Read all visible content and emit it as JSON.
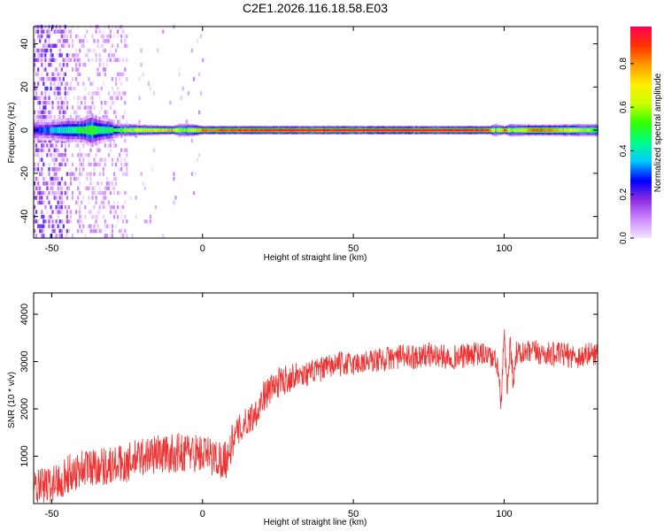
{
  "figure": {
    "title": "C2E1.2026.116.18.58.E03"
  },
  "chart_data": [
    {
      "type": "heatmap",
      "title": "C2E1.2026.116.18.58.E03",
      "xlabel": "Height of straight line (km)",
      "ylabel": "Frequency (Hz)",
      "xlim": [
        -56,
        131
      ],
      "ylim": [
        -50,
        48
      ],
      "x_ticks": [
        -50,
        0,
        50,
        100
      ],
      "y_ticks": [
        -40,
        -20,
        0,
        20,
        40
      ],
      "grid": false,
      "colorbar": {
        "label": "Normalized spectral amplitude",
        "range": [
          0.0,
          0.97
        ],
        "ticks": [
          0.0,
          0.2,
          0.4,
          0.6,
          0.8
        ],
        "tick_labels": [
          "0.0",
          "0.2",
          "0.4",
          "0.6",
          "0.8"
        ],
        "colormap": [
          "#f2e6ff",
          "#cc88ff",
          "#8a2be2",
          "#0000ff",
          "#00ccff",
          "#00ff88",
          "#33ff00",
          "#ccff00",
          "#ffee00",
          "#ff9900",
          "#ff3300",
          "#ff0055"
        ]
      },
      "central_band_x": [
        -56,
        -50,
        -45,
        -40,
        -37,
        -35,
        -30,
        -25,
        -20,
        -10,
        -8,
        -5,
        0,
        10,
        30,
        50,
        80,
        95,
        97,
        100,
        102,
        110,
        131
      ],
      "central_band_amplitude": [
        0.25,
        0.35,
        0.45,
        0.5,
        0.55,
        0.45,
        0.5,
        0.6,
        0.7,
        0.8,
        0.6,
        0.6,
        0.85,
        0.9,
        0.95,
        0.95,
        0.95,
        0.9,
        0.55,
        0.9,
        0.55,
        0.9,
        0.55
      ],
      "central_band_halfwidth_hz": [
        3,
        3,
        3.5,
        3.5,
        5,
        4,
        3,
        3,
        2.5,
        2,
        3,
        3,
        2,
        2,
        2,
        2,
        2,
        2,
        3,
        2,
        3,
        2.5,
        3
      ]
    },
    {
      "type": "line",
      "xlabel": "Height of straight line (km)",
      "ylabel": "SNR (10 * v/v)",
      "xlim": [
        -56,
        131
      ],
      "ylim": [
        0,
        4450
      ],
      "x_ticks": [
        -50,
        0,
        50,
        100
      ],
      "y_ticks": [
        1000,
        2000,
        3000,
        4000
      ],
      "grid": false,
      "series_color": "#ee3333",
      "series": [
        {
          "x": [
            -56,
            -50,
            -45,
            -40,
            -35,
            -30,
            -25,
            -20,
            -15,
            -10,
            -5,
            0,
            5,
            8,
            10,
            12,
            15,
            18,
            20,
            25,
            30,
            35,
            40,
            45,
            50,
            55,
            60,
            65,
            70,
            75,
            80,
            85,
            90,
            95,
            98,
            99,
            100,
            101,
            102,
            103,
            104,
            105,
            110,
            115,
            120,
            125,
            131
          ],
          "y": [
            300,
            400,
            600,
            750,
            800,
            800,
            850,
            1000,
            1050,
            1050,
            1100,
            1050,
            950,
            950,
            1300,
            1550,
            1750,
            1950,
            2250,
            2550,
            2700,
            2750,
            2850,
            2950,
            2950,
            3000,
            3050,
            3100,
            3100,
            3150,
            3100,
            3100,
            3150,
            3150,
            2900,
            2000,
            3600,
            2400,
            3400,
            2600,
            3200,
            3150,
            3200,
            3150,
            3150,
            3100,
            3200
          ]
        }
      ]
    }
  ]
}
